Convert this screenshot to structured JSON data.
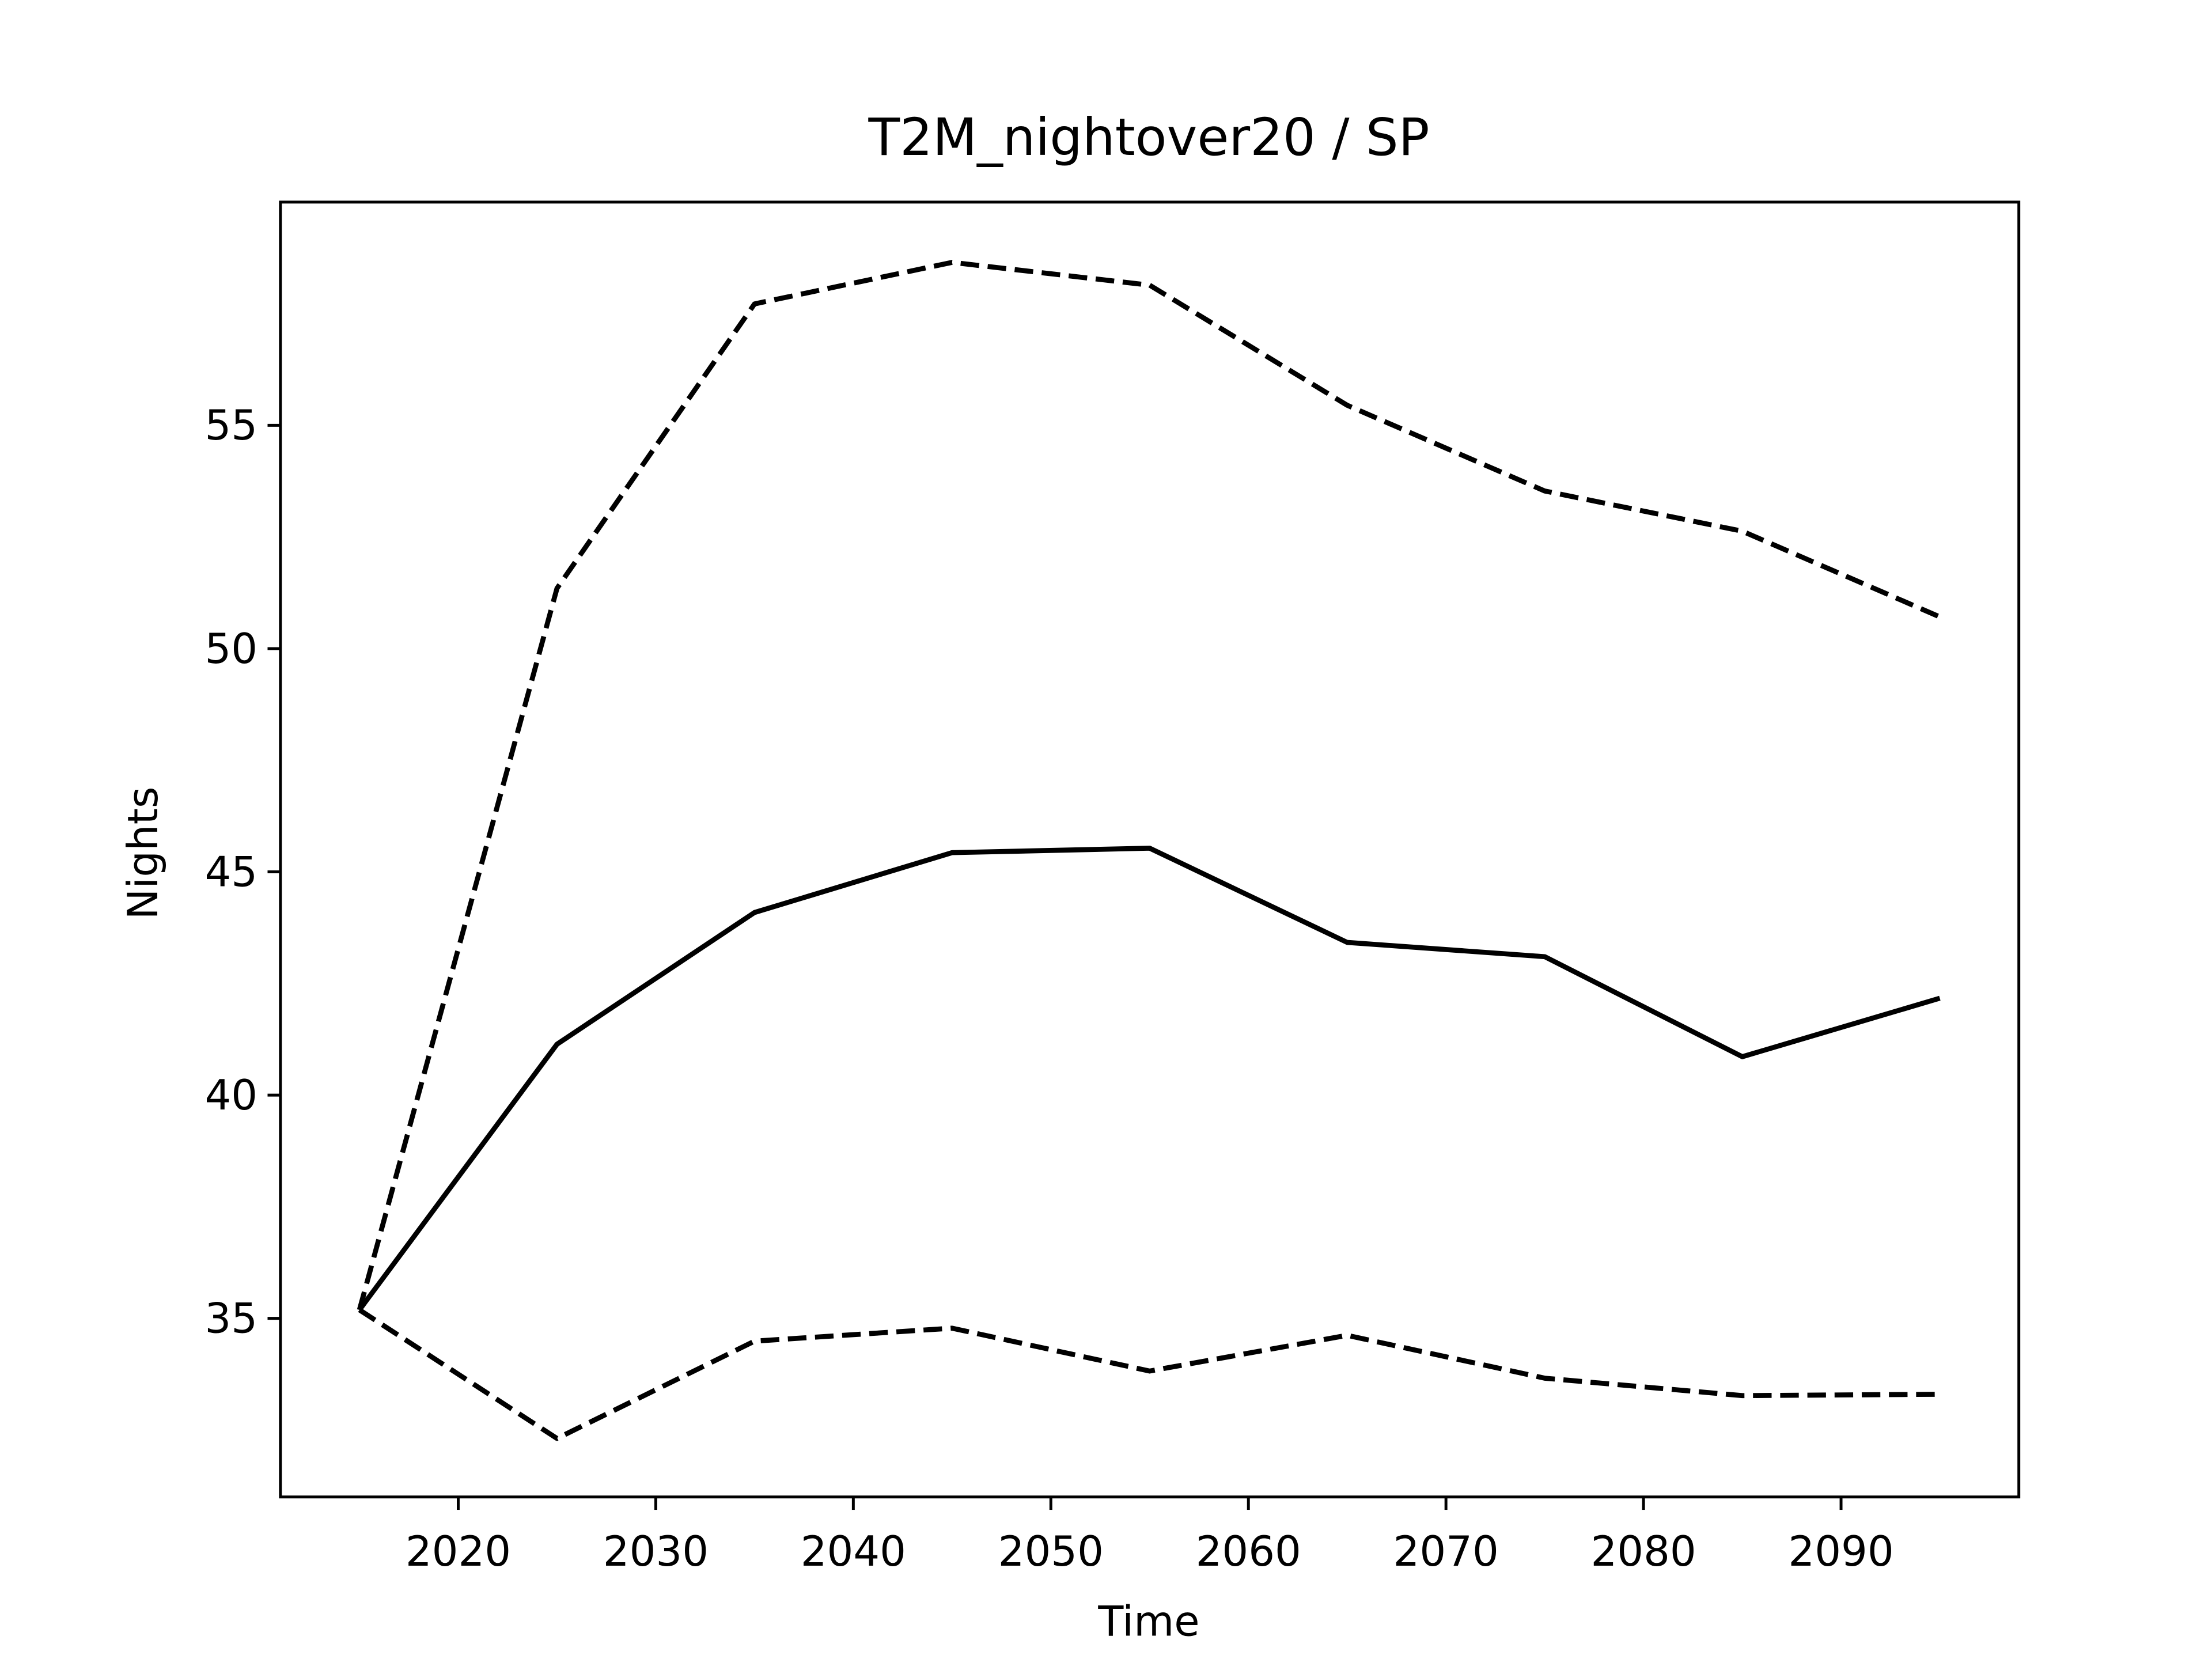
{
  "chart_data": {
    "type": "line",
    "title": "T2M_nightover20 / SP",
    "x_label": "Time",
    "y_label": "Nights",
    "x": [
      2015,
      2025,
      2035,
      2045,
      2055,
      2065,
      2075,
      2085,
      2095
    ],
    "series": [
      {
        "color": "#000000",
        "linestyle": "solid",
        "values": [
          35.19,
          41.14,
          44.09,
          45.43,
          45.53,
          43.42,
          43.1,
          40.86,
          42.17
        ]
      },
      {
        "color": "#000000",
        "linestyle": "dashed",
        "values": [
          35.19,
          51.35,
          57.72,
          58.65,
          58.14,
          55.45,
          53.53,
          52.63,
          50.71
        ]
      },
      {
        "color": "#000000",
        "linestyle": "dashed",
        "values": [
          35.19,
          32.31,
          34.49,
          34.78,
          33.82,
          34.62,
          33.66,
          33.27,
          33.3
        ]
      }
    ],
    "xlim": [
      2011,
      2099
    ],
    "xticks": [
      2020,
      2030,
      2040,
      2050,
      2060,
      2070,
      2080,
      2090
    ],
    "ylim": [
      31,
      60
    ],
    "yticks": [
      35,
      40,
      45,
      50,
      55
    ],
    "grid": false
  }
}
